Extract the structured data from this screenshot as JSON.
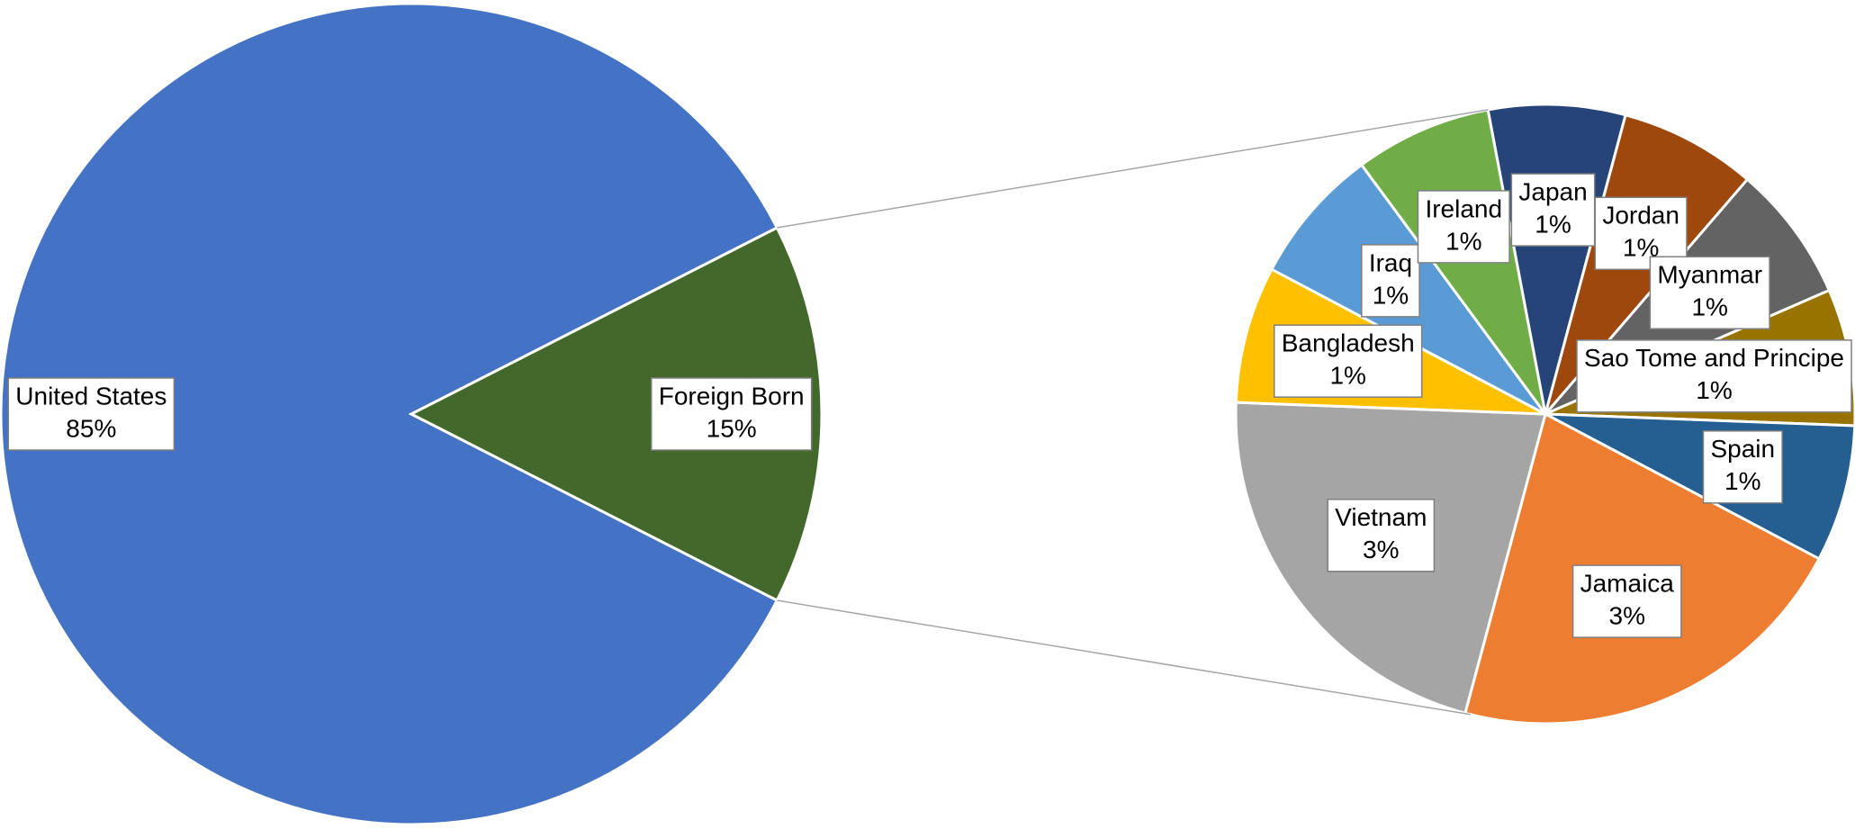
{
  "chart_data": [
    {
      "type": "pie",
      "categories": [
        "United States",
        "Foreign Born"
      ],
      "values": [
        85,
        15
      ],
      "value_labels": [
        "85%",
        "15%"
      ],
      "colors": [
        "#4472c4",
        "#43682b"
      ]
    },
    {
      "type": "pie",
      "categories": [
        "Japan",
        "Jordan",
        "Myanmar",
        "Sao Tome and Principe",
        "Spain",
        "Jamaica",
        "Vietnam",
        "Bangladesh",
        "Iraq",
        "Ireland"
      ],
      "values": [
        1,
        1,
        1,
        1,
        1,
        3,
        3,
        1,
        1,
        1
      ],
      "value_labels": [
        "1%",
        "1%",
        "1%",
        "1%",
        "1%",
        "3%",
        "3%",
        "1%",
        "1%",
        "1%"
      ],
      "colors": [
        "#264478",
        "#9e480e",
        "#636363",
        "#997300",
        "#255e91",
        "#ed7d31",
        "#a5a5a5",
        "#ffc000",
        "#5b9bd5",
        "#70ad47"
      ]
    }
  ]
}
